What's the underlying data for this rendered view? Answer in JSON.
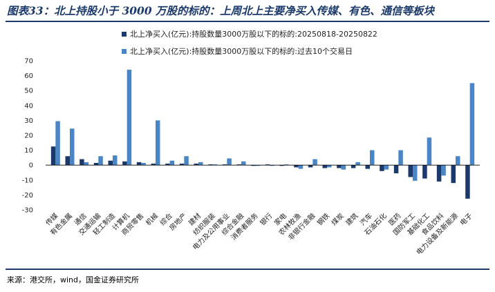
{
  "figure": {
    "title": "图表33：北上持股小于 3000 万股的标的：上周北上主要净买入传媒、有色、通信等板块",
    "source": "来源：港交所，wind，国金证券研究所"
  },
  "colors": {
    "series1": "#1b3a6b",
    "series2": "#4a86c5",
    "rule": "#1b3a6b"
  },
  "chart_data": {
    "type": "bar",
    "categories": [
      "传媒",
      "有色金属",
      "通信",
      "交通运输",
      "轻工制造",
      "计算机",
      "商贸零售",
      "机械",
      "综合",
      "房地产",
      "建材",
      "纺织服装",
      "电力及公用事业",
      "综合金融",
      "消费者服务",
      "银行",
      "家电",
      "农林牧渔",
      "非银行金融",
      "钢铁",
      "煤炭",
      "建筑",
      "汽车",
      "石油石化",
      "医药",
      "国防军工",
      "基础化工",
      "食品饮料",
      "电力设备及新能源",
      "电子"
    ],
    "series": [
      {
        "name": "北上净买入(亿元):持股数量3000万股以下的标的:20250818-20250822",
        "values": [
          12.5,
          6,
          4,
          1.5,
          3,
          2.5,
          2,
          1,
          1,
          1,
          1,
          0.5,
          0.5,
          0.5,
          -0.5,
          0.5,
          -0.5,
          -1.5,
          -1.5,
          -2,
          -2,
          -2,
          -2.5,
          -4,
          -5.5,
          -8,
          -9,
          -11,
          -12,
          -22.5
        ]
      },
      {
        "name": "北上净买入(亿元):持股数量3000万股以下的标的:过去10个交易日",
        "values": [
          29.5,
          24.5,
          2,
          6,
          6.5,
          64,
          1.5,
          30,
          3,
          6,
          2,
          0.5,
          4.5,
          2.5,
          -0.5,
          -0.5,
          0.5,
          -2.5,
          4,
          -1.5,
          -3,
          2,
          10,
          -3,
          10,
          -10.5,
          18.5,
          -7,
          6,
          55
        ]
      }
    ],
    "ylim": [
      -30,
      70
    ],
    "yticks": [
      -30,
      -20,
      -10,
      0,
      10,
      20,
      30,
      40,
      50,
      60,
      70
    ],
    "legend_position": "top-center",
    "grid": false
  }
}
